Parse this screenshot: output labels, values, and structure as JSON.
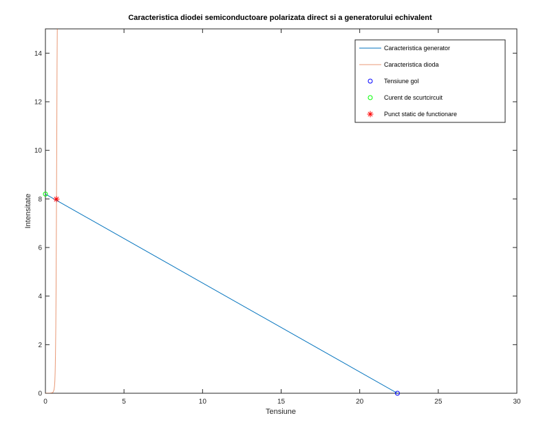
{
  "chart_data": {
    "type": "line",
    "title": "Caracteristica diodei semiconductoare polarizata direct si a generatorului echivalent",
    "xlabel": "Tensiune",
    "ylabel": "Intensitate",
    "xlim": [
      0,
      30
    ],
    "ylim": [
      0,
      15
    ],
    "xticks": [
      0,
      5,
      10,
      15,
      20,
      25,
      30
    ],
    "yticks": [
      0,
      2,
      4,
      6,
      8,
      10,
      12,
      14
    ],
    "grid": false,
    "legend_position": "top-right",
    "series": [
      {
        "name": "Caracteristica generator",
        "kind": "line",
        "color": "#0072bd",
        "x": [
          0,
          22.4
        ],
        "y": [
          8.2,
          0
        ]
      },
      {
        "name": "Caracteristica dioda",
        "kind": "line",
        "color": "#d95319",
        "x": [
          0,
          0.3,
          0.45,
          0.5,
          0.55,
          0.58,
          0.6,
          0.62,
          0.64,
          0.66,
          0.68,
          0.7,
          0.72,
          0.74,
          0.76
        ],
        "y": [
          0,
          0.001,
          0.02,
          0.06,
          0.15,
          0.3,
          0.5,
          0.9,
          1.6,
          2.7,
          4.5,
          7.2,
          10.2,
          13.5,
          15.5
        ]
      },
      {
        "name": "Tensiune gol",
        "kind": "marker",
        "marker": "circle",
        "color": "#0000ff",
        "x": [
          22.4
        ],
        "y": [
          0
        ]
      },
      {
        "name": "Curent de scurtcircuit",
        "kind": "marker",
        "marker": "circle",
        "color": "#00ff00",
        "x": [
          0
        ],
        "y": [
          8.2
        ]
      },
      {
        "name": "Punct static de functionare",
        "kind": "marker",
        "marker": "asterisk",
        "color": "#ff0000",
        "x": [
          0.7
        ],
        "y": [
          7.99
        ]
      }
    ]
  }
}
